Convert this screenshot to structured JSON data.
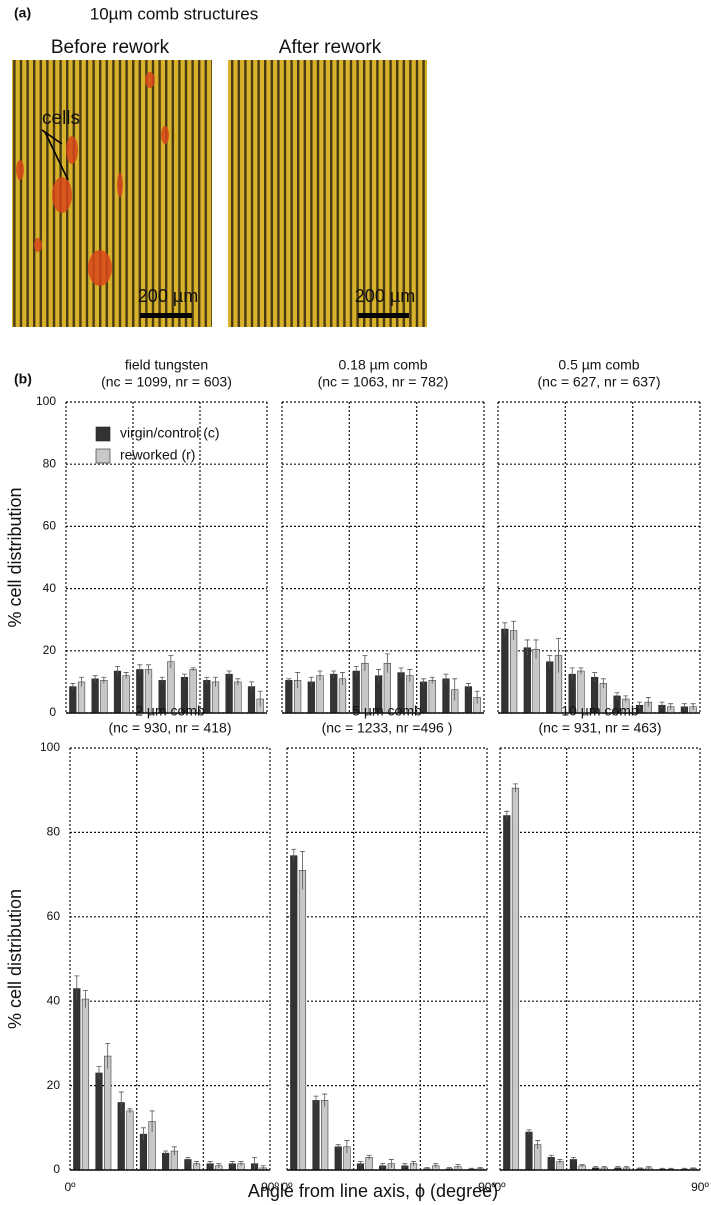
{
  "panel_a": {
    "label": "(a)",
    "title": "10µm comb structures",
    "images": [
      {
        "title": "Before rework",
        "annotation": "cells",
        "scale_bar": "200 µm"
      },
      {
        "title": "After rework",
        "scale_bar": "200 µm"
      }
    ]
  },
  "panel_b_label": "(b)",
  "chart_data": [
    {
      "type": "bar",
      "title": "field tungsten",
      "subtitle": "(nc = 1099, nr = 603)",
      "ylabel": "% cell distribution",
      "show_ytick_labels": true,
      "legend": "upper left",
      "x": [
        5,
        15,
        25,
        35,
        45,
        55,
        65,
        75,
        85
      ],
      "xlim": [
        0,
        90
      ],
      "grid_x": [
        30,
        60
      ],
      "ylim": [
        0,
        100
      ],
      "yticks": [
        0,
        20,
        40,
        60,
        80,
        100
      ],
      "grid": true,
      "series": [
        {
          "name": "virgin/control (c)",
          "color": "#333333",
          "values": [
            8.5,
            11,
            13.5,
            14,
            10.5,
            11.5,
            10.5,
            12.5,
            8.5
          ],
          "errors": [
            1,
            1,
            1.5,
            1.5,
            1,
            1,
            1,
            1,
            1.5
          ]
        },
        {
          "name": "reworked (r)",
          "color": "#c8c8c8",
          "values": [
            10,
            10.5,
            12,
            14,
            16.5,
            14,
            10,
            10,
            4.5
          ],
          "errors": [
            1.5,
            1,
            1,
            1.5,
            2,
            0.5,
            1.5,
            1,
            2.5
          ]
        }
      ]
    },
    {
      "type": "bar",
      "title": "0.18 µm comb",
      "subtitle": "(nc = 1063, nr = 782)",
      "show_ytick_labels": false,
      "x": [
        5,
        15,
        25,
        35,
        45,
        55,
        65,
        75,
        85
      ],
      "xlim": [
        0,
        90
      ],
      "grid_x": [
        30,
        60
      ],
      "ylim": [
        0,
        100
      ],
      "yticks": [
        0,
        20,
        40,
        60,
        80,
        100
      ],
      "grid": true,
      "series": [
        {
          "color": "#333333",
          "values": [
            10.5,
            10,
            12.5,
            13.5,
            12,
            13,
            10,
            11,
            8.5
          ],
          "errors": [
            0.5,
            1.5,
            1,
            1.5,
            2,
            1.5,
            1,
            1.5,
            1
          ]
        },
        {
          "color": "#c8c8c8",
          "values": [
            10.5,
            12,
            11,
            16,
            16,
            12,
            10.5,
            7.5,
            5
          ],
          "errors": [
            2.5,
            1.5,
            2,
            2.5,
            3,
            2,
            1,
            3.5,
            2
          ]
        }
      ]
    },
    {
      "type": "bar",
      "title": "0.5 µm comb",
      "subtitle": "(nc = 627, nr = 637)",
      "show_ytick_labels": false,
      "x": [
        5,
        15,
        25,
        35,
        45,
        55,
        65,
        75,
        85
      ],
      "xlim": [
        0,
        90
      ],
      "grid_x": [
        30,
        60
      ],
      "ylim": [
        0,
        100
      ],
      "yticks": [
        0,
        20,
        40,
        60,
        80,
        100
      ],
      "grid": true,
      "series": [
        {
          "color": "#333333",
          "values": [
            27,
            21,
            16.5,
            12.5,
            11.5,
            5.5,
            2.5,
            2.5,
            2
          ],
          "errors": [
            2,
            2.5,
            2,
            2,
            1.5,
            1,
            1,
            1,
            1
          ]
        },
        {
          "color": "#c8c8c8",
          "values": [
            26.5,
            20.5,
            18.5,
            13.5,
            9.5,
            4.5,
            3.5,
            2,
            2
          ],
          "errors": [
            3,
            3,
            5.5,
            1,
            1.5,
            1,
            1.5,
            1,
            1
          ]
        }
      ]
    },
    {
      "type": "bar",
      "title": "2 µm comb",
      "subtitle": "(nc = 930, nr = 418)",
      "ylabel": "% cell distribution",
      "show_ytick_labels": true,
      "x": [
        5,
        15,
        25,
        35,
        45,
        55,
        65,
        75,
        85
      ],
      "xlim": [
        0,
        90
      ],
      "grid_x": [
        30,
        60
      ],
      "xticks": [
        {
          "value": 0,
          "label": "0º"
        },
        {
          "value": 90,
          "label": "90º"
        }
      ],
      "ylim": [
        0,
        100
      ],
      "yticks": [
        0,
        20,
        40,
        60,
        80,
        100
      ],
      "grid": true,
      "series": [
        {
          "color": "#333333",
          "values": [
            43,
            23,
            16,
            8.5,
            4,
            2.5,
            1.5,
            1.5,
            1.5
          ],
          "errors": [
            3,
            1.5,
            2.5,
            1.5,
            0.5,
            0.5,
            0.5,
            0.5,
            1.5
          ]
        },
        {
          "color": "#c8c8c8",
          "values": [
            40.5,
            27,
            14,
            11.5,
            4.5,
            1.5,
            1,
            1.5,
            0.5
          ],
          "errors": [
            2,
            3,
            0.5,
            2.5,
            1,
            0.5,
            0.5,
            0.5,
            0.5
          ]
        }
      ]
    },
    {
      "type": "bar",
      "title": "5 µm comb",
      "subtitle": "(nc = 1233, nr =496 )",
      "xlabel": "Angle from line axis, ϕ (degree)",
      "show_ytick_labels": false,
      "x": [
        5,
        15,
        25,
        35,
        45,
        55,
        65,
        75,
        85
      ],
      "xlim": [
        0,
        90
      ],
      "grid_x": [
        30,
        60
      ],
      "xticks": [
        {
          "value": 0,
          "label": "0º"
        },
        {
          "value": 90,
          "label": "90º"
        }
      ],
      "ylim": [
        0,
        100
      ],
      "yticks": [
        0,
        20,
        40,
        60,
        80,
        100
      ],
      "grid": true,
      "series": [
        {
          "color": "#333333",
          "values": [
            74.5,
            16.5,
            5.5,
            1.5,
            1,
            1,
            0.3,
            0.3,
            0.2
          ],
          "errors": [
            1.5,
            1,
            0.5,
            0.5,
            0.5,
            0.5,
            0.3,
            0.3,
            0.2
          ]
        },
        {
          "color": "#c8c8c8",
          "values": [
            71,
            16.5,
            5.5,
            3,
            1.5,
            1.5,
            1,
            0.8,
            0.3
          ],
          "errors": [
            4.5,
            1.5,
            1.5,
            0.5,
            1,
            0.5,
            0.5,
            0.5,
            0.3
          ]
        }
      ]
    },
    {
      "type": "bar",
      "title": "10 µm comb",
      "subtitle": "(nc = 931, nr = 463)",
      "show_ytick_labels": false,
      "x": [
        5,
        15,
        25,
        35,
        45,
        55,
        65,
        75,
        85
      ],
      "xlim": [
        0,
        90
      ],
      "grid_x": [
        30,
        60
      ],
      "xticks": [
        {
          "value": 0,
          "label": "0º"
        },
        {
          "value": 90,
          "label": "90º"
        }
      ],
      "ylim": [
        0,
        100
      ],
      "yticks": [
        0,
        20,
        40,
        60,
        80,
        100
      ],
      "grid": true,
      "series": [
        {
          "color": "#333333",
          "values": [
            84,
            9,
            3,
            2.5,
            0.5,
            0.5,
            0.3,
            0.2,
            0.2
          ],
          "errors": [
            1,
            0.5,
            0.5,
            0.5,
            0.3,
            0.3,
            0.2,
            0.2,
            0.2
          ]
        },
        {
          "color": "#c8c8c8",
          "values": [
            90.5,
            6,
            2,
            1,
            0.5,
            0.5,
            0.5,
            0.2,
            0.3
          ],
          "errors": [
            1,
            1,
            0.5,
            0.3,
            0.3,
            0.3,
            0.3,
            0.2,
            0.2
          ]
        }
      ]
    }
  ]
}
